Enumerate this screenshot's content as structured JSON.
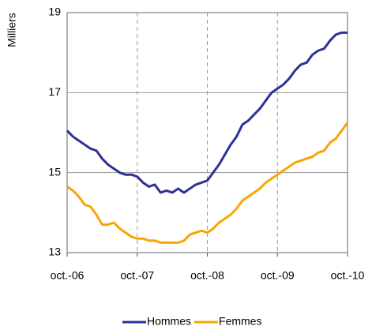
{
  "chart_data": {
    "type": "line",
    "y_label": "Milliers",
    "categories": [
      "oct.-06",
      null,
      null,
      null,
      null,
      null,
      null,
      null,
      null,
      null,
      null,
      null,
      "oct.-07",
      null,
      null,
      null,
      null,
      null,
      null,
      null,
      null,
      null,
      null,
      null,
      "oct.-08",
      null,
      null,
      null,
      null,
      null,
      null,
      null,
      null,
      null,
      null,
      null,
      "oct.-09",
      null,
      null,
      null,
      null,
      null,
      null,
      null,
      null,
      null,
      null,
      null,
      "oct.-10"
    ],
    "series": [
      {
        "name": "Hommes",
        "color": "#2e3192",
        "values": [
          16.05,
          15.9,
          15.8,
          15.7,
          15.6,
          15.55,
          15.35,
          15.2,
          15.1,
          15.0,
          14.95,
          14.95,
          14.9,
          14.75,
          14.65,
          14.7,
          14.5,
          14.55,
          14.5,
          14.6,
          14.5,
          14.6,
          14.7,
          14.75,
          14.8,
          15.0,
          15.2,
          15.45,
          15.7,
          15.9,
          16.2,
          16.3,
          16.45,
          16.6,
          16.8,
          17.0,
          17.1,
          17.2,
          17.35,
          17.55,
          17.7,
          17.75,
          17.95,
          18.05,
          18.1,
          18.3,
          18.45,
          18.5,
          18.5
        ]
      },
      {
        "name": "Femmes",
        "color": "#f7a600",
        "values": [
          14.65,
          14.55,
          14.4,
          14.2,
          14.15,
          13.95,
          13.7,
          13.7,
          13.75,
          13.6,
          13.5,
          13.4,
          13.35,
          13.35,
          13.3,
          13.3,
          13.25,
          13.25,
          13.25,
          13.25,
          13.3,
          13.45,
          13.5,
          13.55,
          13.5,
          13.6,
          13.75,
          13.85,
          13.95,
          14.1,
          14.3,
          14.4,
          14.5,
          14.6,
          14.75,
          14.85,
          14.95,
          15.05,
          15.15,
          15.25,
          15.3,
          15.35,
          15.4,
          15.5,
          15.55,
          15.75,
          15.85,
          16.05,
          16.25
        ]
      }
    ],
    "ylim": [
      13,
      19
    ],
    "yticks": [
      13,
      15,
      17,
      19
    ],
    "grid": true,
    "legend": "bottom"
  }
}
